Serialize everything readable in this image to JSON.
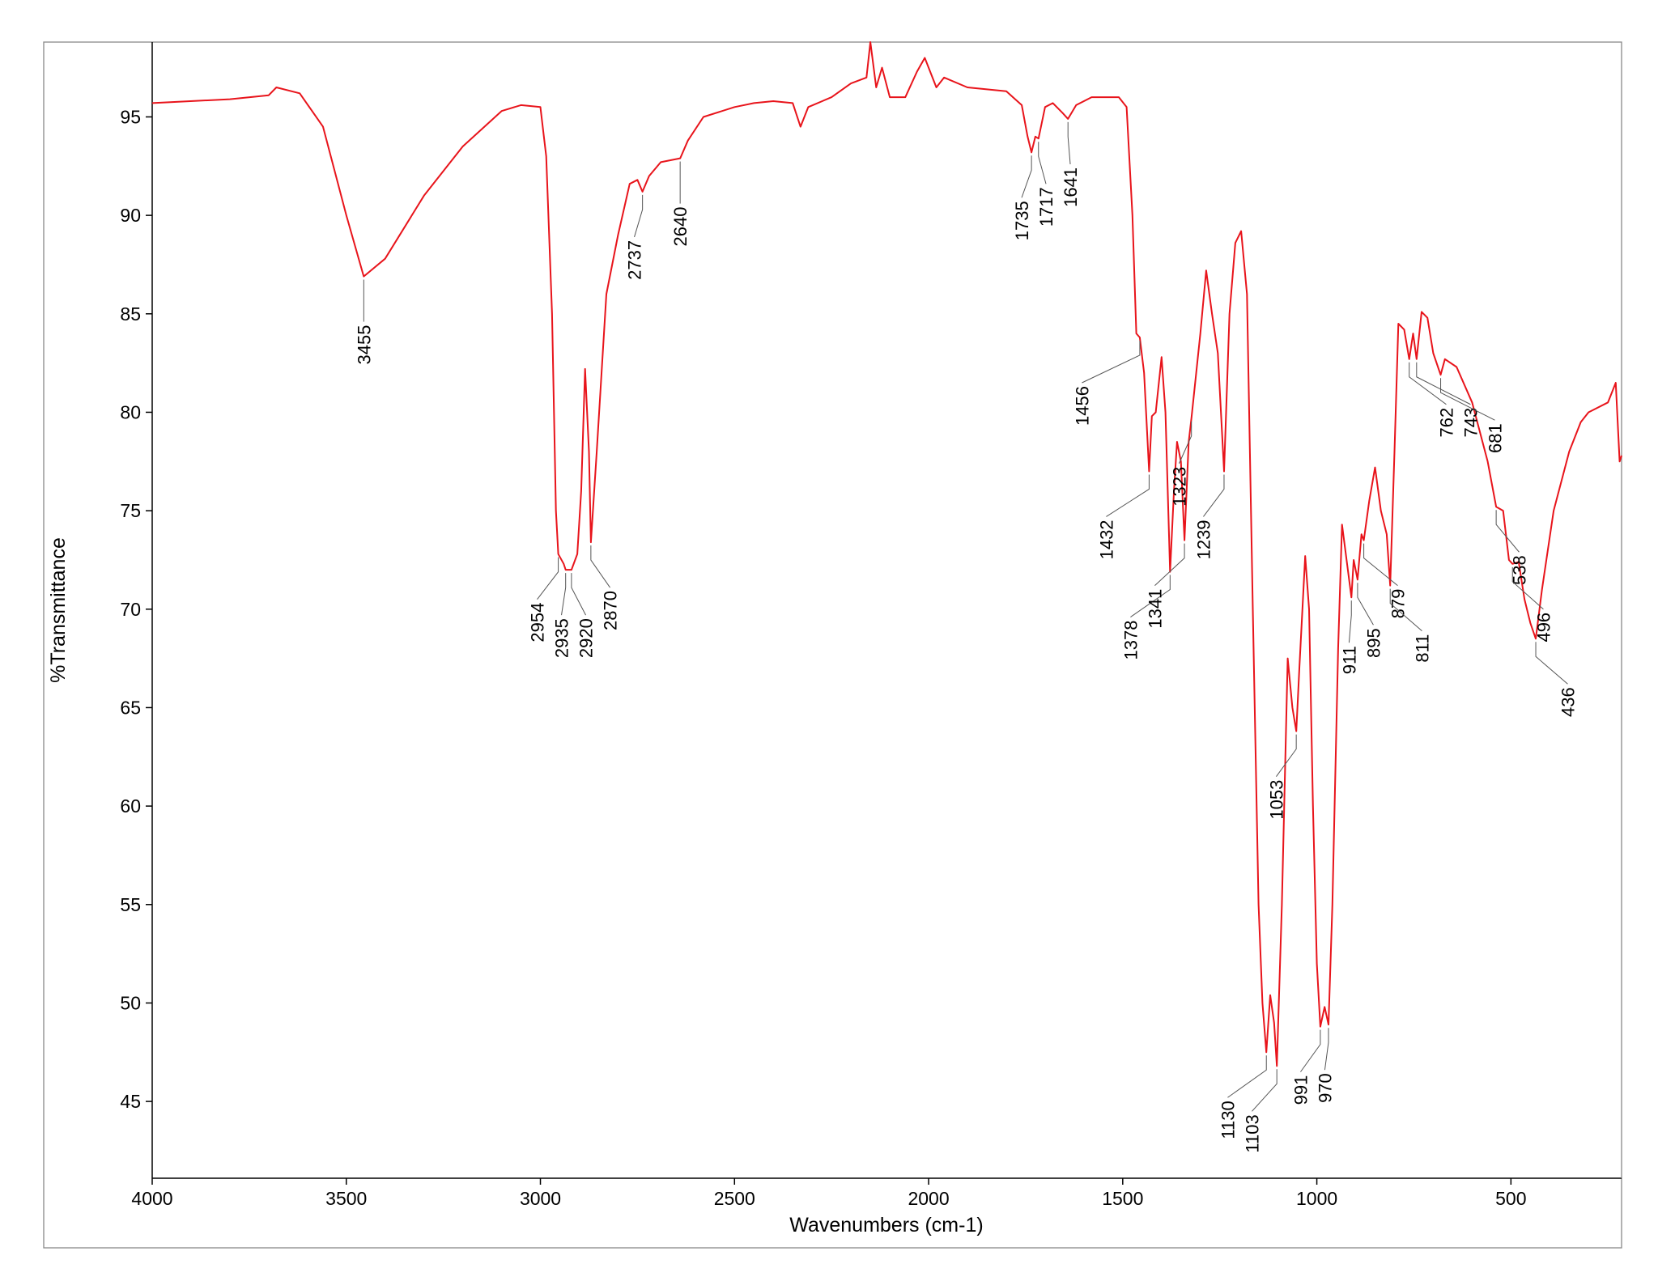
{
  "chart_data": {
    "type": "line",
    "x_label": "Wavenumbers (cm-1)",
    "y_label": "%Transmittance",
    "color": "#e8141b",
    "xlim": [
      4000,
      215
    ],
    "ylim": [
      41.1,
      98.8
    ],
    "xticks": [
      4000,
      3500,
      3000,
      2500,
      2000,
      1500,
      1000,
      500
    ],
    "yticks": [
      45,
      50,
      55,
      60,
      65,
      70,
      75,
      80,
      85,
      90,
      95
    ],
    "x": [
      4000,
      3800,
      3700,
      3680,
      3620,
      3560,
      3500,
      3455,
      3400,
      3300,
      3200,
      3100,
      3050,
      3000,
      2985,
      2970,
      2960,
      2954,
      2940,
      2935,
      2920,
      2905,
      2895,
      2885,
      2875,
      2870,
      2855,
      2830,
      2800,
      2770,
      2750,
      2737,
      2720,
      2690,
      2640,
      2620,
      2580,
      2500,
      2450,
      2400,
      2350,
      2330,
      2310,
      2250,
      2200,
      2160,
      2150,
      2135,
      2120,
      2100,
      2060,
      2030,
      2010,
      1990,
      1980,
      1960,
      1900,
      1800,
      1760,
      1745,
      1735,
      1725,
      1717,
      1700,
      1680,
      1655,
      1641,
      1620,
      1580,
      1510,
      1490,
      1475,
      1465,
      1456,
      1445,
      1432,
      1425,
      1415,
      1400,
      1390,
      1378,
      1368,
      1360,
      1350,
      1341,
      1330,
      1323,
      1300,
      1285,
      1270,
      1255,
      1239,
      1225,
      1210,
      1195,
      1180,
      1165,
      1150,
      1140,
      1130,
      1120,
      1110,
      1103,
      1090,
      1075,
      1063,
      1053,
      1045,
      1030,
      1020,
      1010,
      1000,
      991,
      980,
      970,
      960,
      945,
      935,
      920,
      911,
      905,
      895,
      885,
      879,
      865,
      850,
      835,
      820,
      811,
      800,
      790,
      775,
      762,
      752,
      743,
      730,
      715,
      700,
      681,
      670,
      640,
      600,
      560,
      538,
      520,
      505,
      496,
      480,
      465,
      450,
      436,
      420,
      390,
      350,
      320,
      300,
      280,
      250,
      230,
      220,
      215
    ],
    "values": [
      95.7,
      95.9,
      96.1,
      96.5,
      96.2,
      94.5,
      90,
      86.9,
      87.8,
      91,
      93.5,
      95.3,
      95.6,
      95.5,
      93,
      85,
      75,
      72.8,
      72.3,
      72.0,
      72.0,
      72.8,
      76,
      82.2,
      78,
      73.4,
      78,
      86,
      89,
      91.6,
      91.8,
      91.2,
      92,
      92.7,
      92.9,
      93.8,
      95,
      95.5,
      95.7,
      95.8,
      95.7,
      94.5,
      95.5,
      96.0,
      96.7,
      97.0,
      98.8,
      96.5,
      97.5,
      96,
      96,
      97.3,
      98.0,
      97.0,
      96.5,
      97.0,
      96.5,
      96.3,
      95.6,
      94,
      93.2,
      94,
      93.9,
      95.5,
      95.7,
      95.2,
      94.9,
      95.6,
      96.0,
      96.0,
      95.5,
      90,
      84,
      83.8,
      82,
      77,
      79.8,
      80,
      82.8,
      80,
      71.9,
      76,
      78.5,
      77.5,
      73.5,
      78.5,
      79.7,
      84,
      87.2,
      85,
      83,
      77,
      85,
      88.6,
      89.2,
      86,
      70,
      55,
      50,
      47.5,
      50.4,
      49,
      46.8,
      55,
      67.5,
      65,
      63.8,
      67,
      72.7,
      70,
      60,
      52,
      48.8,
      49.8,
      48.9,
      55,
      68,
      74.3,
      72,
      70.6,
      72.5,
      71.5,
      73.8,
      73.5,
      75.5,
      77.2,
      75,
      73.8,
      71.2,
      78,
      84.5,
      84.2,
      82.7,
      84,
      82.7,
      85.1,
      84.8,
      83,
      81.9,
      82.7,
      82.3,
      80.5,
      77.5,
      75.2,
      75,
      72.5,
      72.3,
      72.4,
      70.5,
      69.3,
      68.5,
      71,
      75,
      78,
      79.5,
      80,
      80.2,
      80.5,
      81.5,
      77.5,
      77.8
    ],
    "peaks": [
      {
        "x": 3455,
        "y": 86.9
      },
      {
        "x": 2954,
        "y": 72.8
      },
      {
        "x": 2935,
        "y": 72.0
      },
      {
        "x": 2920,
        "y": 72.0
      },
      {
        "x": 2870,
        "y": 73.4
      },
      {
        "x": 2737,
        "y": 91.2
      },
      {
        "x": 2640,
        "y": 92.9
      },
      {
        "x": 1735,
        "y": 93.2
      },
      {
        "x": 1717,
        "y": 93.9
      },
      {
        "x": 1641,
        "y": 94.9
      },
      {
        "x": 1456,
        "y": 83.8
      },
      {
        "x": 1432,
        "y": 77
      },
      {
        "x": 1378,
        "y": 71.9
      },
      {
        "x": 1341,
        "y": 73.5
      },
      {
        "x": 1323,
        "y": 79.7
      },
      {
        "x": 1239,
        "y": 77
      },
      {
        "x": 1130,
        "y": 47.5
      },
      {
        "x": 1103,
        "y": 46.8
      },
      {
        "x": 1053,
        "y": 63.8
      },
      {
        "x": 991,
        "y": 48.8
      },
      {
        "x": 970,
        "y": 48.9
      },
      {
        "x": 911,
        "y": 70.6
      },
      {
        "x": 895,
        "y": 71.5
      },
      {
        "x": 879,
        "y": 73.5
      },
      {
        "x": 811,
        "y": 71.2
      },
      {
        "x": 762,
        "y": 82.7
      },
      {
        "x": 743,
        "y": 82.7
      },
      {
        "x": 681,
        "y": 81.9
      },
      {
        "x": 538,
        "y": 75.2
      },
      {
        "x": 496,
        "y": 72.3
      },
      {
        "x": 436,
        "y": 68.5
      }
    ]
  }
}
